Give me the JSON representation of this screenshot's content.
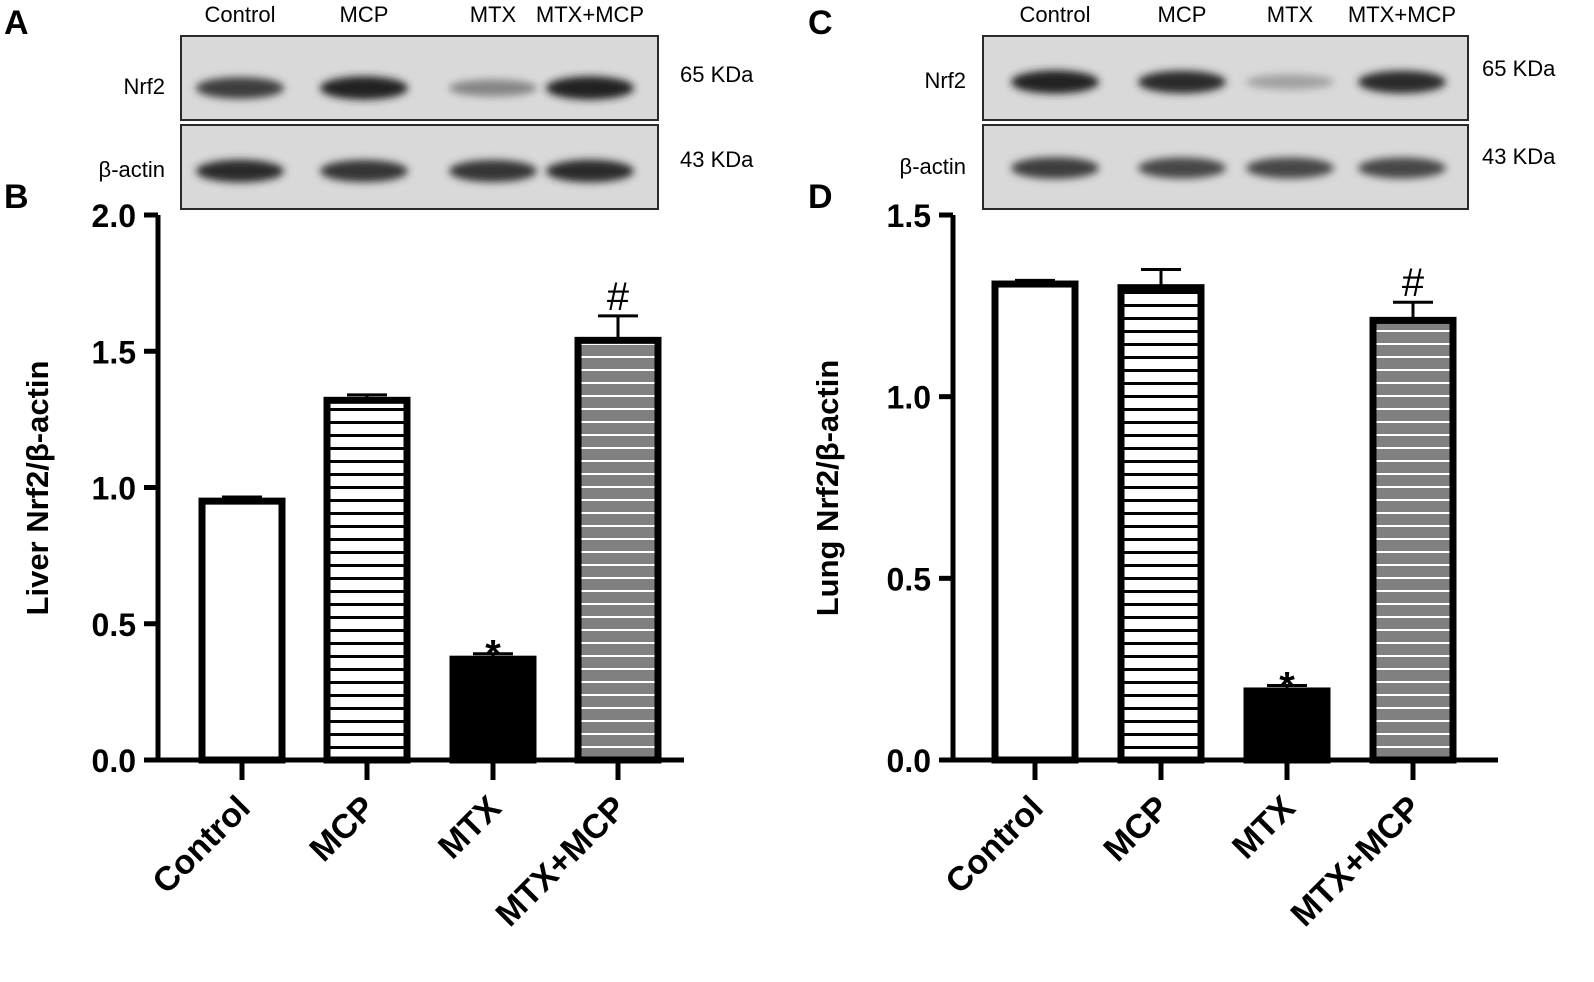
{
  "panels": {
    "A": {
      "letter": "A"
    },
    "B": {
      "letter": "B"
    },
    "C": {
      "letter": "C"
    },
    "D": {
      "letter": "D"
    }
  },
  "blots": [
    {
      "panel": "A",
      "lanes": [
        "Control",
        "MCP",
        "MTX",
        "MTX+MCP"
      ],
      "rows": [
        {
          "label": "Nrf2",
          "kda": "65 KDa",
          "intensity": [
            0.8,
            0.95,
            0.4,
            0.95
          ]
        },
        {
          "label": "β-actin",
          "kda": "43 KDa",
          "intensity": [
            0.9,
            0.85,
            0.85,
            0.9
          ]
        }
      ]
    },
    {
      "panel": "C",
      "lanes": [
        "Control",
        "MCP",
        "MTX",
        "MTX+MCP"
      ],
      "rows": [
        {
          "label": "Nrf2",
          "kda": "65 KDa",
          "intensity": [
            0.95,
            0.9,
            0.25,
            0.9
          ]
        },
        {
          "label": "β-actin",
          "kda": "43 KDa",
          "intensity": [
            0.8,
            0.75,
            0.75,
            0.75
          ]
        }
      ]
    }
  ],
  "chart_data": [
    {
      "panel": "B",
      "type": "bar",
      "title": "",
      "xlabel": "",
      "ylabel": "Liver Nrf2/β-actin",
      "categories": [
        "Control",
        "MCP",
        "MTX",
        "MTX+MCP"
      ],
      "values": [
        0.95,
        1.32,
        0.37,
        1.54
      ],
      "errors": [
        0.015,
        0.02,
        0.02,
        0.09
      ],
      "markers": [
        "",
        "",
        "*",
        "#"
      ],
      "fills": [
        "white",
        "hlines-white",
        "black",
        "gray-white-lines"
      ],
      "ylim": [
        0,
        2.0
      ],
      "yticks": [
        "0.0",
        "0.5",
        "1.0",
        "1.5",
        "2.0"
      ]
    },
    {
      "panel": "D",
      "type": "bar",
      "title": "",
      "xlabel": "",
      "ylabel": "Lung Nrf2/β-actin",
      "categories": [
        "Control",
        "MCP",
        "MTX",
        "MTX+MCP"
      ],
      "values": [
        1.31,
        1.3,
        0.19,
        1.21
      ],
      "errors": [
        0.01,
        0.05,
        0.015,
        0.05
      ],
      "markers": [
        "",
        "",
        "*",
        "#"
      ],
      "fills": [
        "white",
        "hlines-white",
        "black",
        "gray-white-lines"
      ],
      "ylim": [
        0,
        1.5
      ],
      "yticks": [
        "0.0",
        "0.5",
        "1.0",
        "1.5"
      ]
    }
  ],
  "colors": {
    "bar_outline": "#000000",
    "gray_fill": "#808080",
    "blot_background": "#d9d9d9",
    "band": "#1a1a1a"
  }
}
